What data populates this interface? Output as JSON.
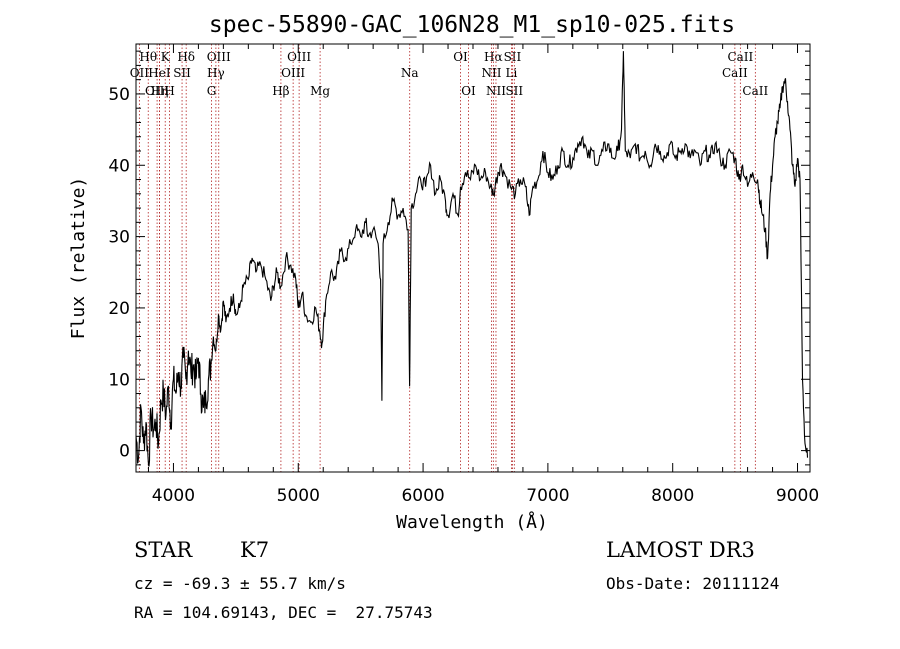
{
  "chart_data": {
    "type": "line",
    "title": "spec-55890-GAC_106N28_M1_sp10-025.fits",
    "xlabel": "Wavelength (Å)",
    "ylabel": "Flux (relative)",
    "xlim": [
      3700,
      9100
    ],
    "ylim": [
      -3,
      57
    ],
    "x_ticks": [
      4000,
      5000,
      6000,
      7000,
      8000,
      9000
    ],
    "y_ticks": [
      0,
      10,
      20,
      30,
      40,
      50
    ],
    "series": [
      {
        "name": "flux",
        "points": [
          [
            3700,
            2
          ],
          [
            3720,
            -1
          ],
          [
            3740,
            6
          ],
          [
            3760,
            1
          ],
          [
            3780,
            4
          ],
          [
            3800,
            -2
          ],
          [
            3820,
            5
          ],
          [
            3840,
            3
          ],
          [
            3860,
            4
          ],
          [
            3880,
            1
          ],
          [
            3900,
            7
          ],
          [
            3920,
            8
          ],
          [
            3940,
            5
          ],
          [
            3960,
            9
          ],
          [
            3980,
            4
          ],
          [
            4000,
            10
          ],
          [
            4020,
            8
          ],
          [
            4040,
            11
          ],
          [
            4060,
            9
          ],
          [
            4080,
            13
          ],
          [
            4100,
            10
          ],
          [
            4120,
            14
          ],
          [
            4140,
            11
          ],
          [
            4160,
            12
          ],
          [
            4180,
            10
          ],
          [
            4200,
            13
          ],
          [
            4220,
            8
          ],
          [
            4240,
            6
          ],
          [
            4260,
            7
          ],
          [
            4280,
            10
          ],
          [
            4300,
            12
          ],
          [
            4320,
            16
          ],
          [
            4340,
            14
          ],
          [
            4360,
            19
          ],
          [
            4380,
            17
          ],
          [
            4400,
            21
          ],
          [
            4420,
            18
          ],
          [
            4450,
            20
          ],
          [
            4480,
            22
          ],
          [
            4500,
            19
          ],
          [
            4530,
            20
          ],
          [
            4560,
            23
          ],
          [
            4600,
            24
          ],
          [
            4630,
            27
          ],
          [
            4660,
            25
          ],
          [
            4700,
            26
          ],
          [
            4740,
            24
          ],
          [
            4780,
            21
          ],
          [
            4800,
            23
          ],
          [
            4830,
            25
          ],
          [
            4860,
            23
          ],
          [
            4900,
            27
          ],
          [
            4940,
            26
          ],
          [
            4980,
            24
          ],
          [
            5000,
            20
          ],
          [
            5030,
            22
          ],
          [
            5060,
            19
          ],
          [
            5100,
            18
          ],
          [
            5140,
            20
          ],
          [
            5170,
            17
          ],
          [
            5190,
            15
          ],
          [
            5220,
            21
          ],
          [
            5260,
            25
          ],
          [
            5300,
            24
          ],
          [
            5340,
            28
          ],
          [
            5380,
            27
          ],
          [
            5420,
            29
          ],
          [
            5460,
            31
          ],
          [
            5500,
            30
          ],
          [
            5540,
            32
          ],
          [
            5560,
            30
          ],
          [
            5600,
            31
          ],
          [
            5640,
            29
          ],
          [
            5660,
            24
          ],
          [
            5670,
            7
          ],
          [
            5680,
            29
          ],
          [
            5720,
            32
          ],
          [
            5760,
            35
          ],
          [
            5800,
            33
          ],
          [
            5840,
            34
          ],
          [
            5880,
            31
          ],
          [
            5892,
            9
          ],
          [
            5905,
            34
          ],
          [
            5940,
            36
          ],
          [
            5980,
            38
          ],
          [
            6020,
            37
          ],
          [
            6060,
            40
          ],
          [
            6100,
            36
          ],
          [
            6140,
            38
          ],
          [
            6180,
            35
          ],
          [
            6200,
            33
          ],
          [
            6240,
            36
          ],
          [
            6280,
            33
          ],
          [
            6300,
            37
          ],
          [
            6340,
            39
          ],
          [
            6380,
            38
          ],
          [
            6420,
            40
          ],
          [
            6460,
            38
          ],
          [
            6500,
            39
          ],
          [
            6540,
            37
          ],
          [
            6563,
            36
          ],
          [
            6600,
            39
          ],
          [
            6620,
            40
          ],
          [
            6650,
            39
          ],
          [
            6700,
            37
          ],
          [
            6740,
            36
          ],
          [
            6780,
            38
          ],
          [
            6820,
            37
          ],
          [
            6850,
            33
          ],
          [
            6880,
            37
          ],
          [
            6920,
            38
          ],
          [
            6960,
            42
          ],
          [
            7000,
            39
          ],
          [
            7040,
            38
          ],
          [
            7080,
            40
          ],
          [
            7120,
            42
          ],
          [
            7160,
            40
          ],
          [
            7200,
            41
          ],
          [
            7240,
            43
          ],
          [
            7280,
            44
          ],
          [
            7320,
            41
          ],
          [
            7360,
            42
          ],
          [
            7400,
            40
          ],
          [
            7440,
            42
          ],
          [
            7480,
            43
          ],
          [
            7520,
            41
          ],
          [
            7560,
            42
          ],
          [
            7590,
            45
          ],
          [
            7605,
            56
          ],
          [
            7620,
            42
          ],
          [
            7660,
            41
          ],
          [
            7700,
            43
          ],
          [
            7740,
            41
          ],
          [
            7780,
            42
          ],
          [
            7820,
            40
          ],
          [
            7860,
            43
          ],
          [
            7900,
            42
          ],
          [
            7940,
            41
          ],
          [
            7980,
            43
          ],
          [
            8020,
            41
          ],
          [
            8060,
            42
          ],
          [
            8100,
            43
          ],
          [
            8140,
            41
          ],
          [
            8180,
            42
          ],
          [
            8220,
            40
          ],
          [
            8260,
            42
          ],
          [
            8300,
            41
          ],
          [
            8340,
            43
          ],
          [
            8380,
            41
          ],
          [
            8420,
            40
          ],
          [
            8460,
            42
          ],
          [
            8500,
            41
          ],
          [
            8530,
            38
          ],
          [
            8560,
            40
          ],
          [
            8600,
            37
          ],
          [
            8640,
            39
          ],
          [
            8680,
            38
          ],
          [
            8700,
            35
          ],
          [
            8720,
            33
          ],
          [
            8740,
            31
          ],
          [
            8760,
            27
          ],
          [
            8780,
            36
          ],
          [
            8800,
            40
          ],
          [
            8820,
            44
          ],
          [
            8840,
            46
          ],
          [
            8860,
            48
          ],
          [
            8880,
            51
          ],
          [
            8900,
            52
          ],
          [
            8920,
            49
          ],
          [
            8940,
            45
          ],
          [
            8960,
            40
          ],
          [
            8980,
            37
          ],
          [
            9000,
            41
          ],
          [
            9020,
            38
          ],
          [
            9040,
            10
          ],
          [
            9060,
            1
          ],
          [
            9080,
            -1
          ]
        ]
      }
    ],
    "line_marks": [
      {
        "label": "Hθ",
        "wl": 3798,
        "row": 1
      },
      {
        "label": "OII",
        "wl": 3727,
        "row": 2
      },
      {
        "label": "OIII",
        "wl": 3869,
        "row": 3
      },
      {
        "label": "Hη",
        "wl": 3889,
        "row": 3
      },
      {
        "label": "K",
        "wl": 3934,
        "row": 1
      },
      {
        "label": "HeI",
        "wl": 3888,
        "row": 2
      },
      {
        "label": "H",
        "wl": 3969,
        "row": 3
      },
      {
        "label": "Hδ",
        "wl": 4102,
        "row": 1
      },
      {
        "label": "SII",
        "wl": 4069,
        "row": 2
      },
      {
        "label": "OIII",
        "wl": 4363,
        "row": 1
      },
      {
        "label": "Hγ",
        "wl": 4340,
        "row": 2
      },
      {
        "label": "G",
        "wl": 4305,
        "row": 3
      },
      {
        "label": "OIII",
        "wl": 5007,
        "row": 1
      },
      {
        "label": "OIII",
        "wl": 4959,
        "row": 2
      },
      {
        "label": "Hβ",
        "wl": 4861,
        "row": 3
      },
      {
        "label": "Mg",
        "wl": 5175,
        "row": 3
      },
      {
        "label": "Na",
        "wl": 5893,
        "row": 2
      },
      {
        "label": "OI",
        "wl": 6300,
        "row": 1
      },
      {
        "label": "OI",
        "wl": 6364,
        "row": 3
      },
      {
        "label": "Hα",
        "wl": 6563,
        "row": 1
      },
      {
        "label": "SII",
        "wl": 6716,
        "row": 1
      },
      {
        "label": "NII",
        "wl": 6548,
        "row": 2
      },
      {
        "label": "Li",
        "wl": 6708,
        "row": 2
      },
      {
        "label": "NII",
        "wl": 6584,
        "row": 3
      },
      {
        "label": "SII",
        "wl": 6731,
        "row": 3
      },
      {
        "label": "CaII",
        "wl": 8542,
        "row": 1
      },
      {
        "label": "CaII",
        "wl": 8498,
        "row": 2
      },
      {
        "label": "CaII",
        "wl": 8662,
        "row": 3
      }
    ]
  },
  "info": {
    "class_label": "STAR",
    "subclass": "K7",
    "survey": "LAMOST DR3",
    "cz": "cz = -69.3 ± 55.7 km/s",
    "obs_date": "Obs-Date: 20111124",
    "coords": "RA = 104.69143, DEC =  27.75743"
  }
}
